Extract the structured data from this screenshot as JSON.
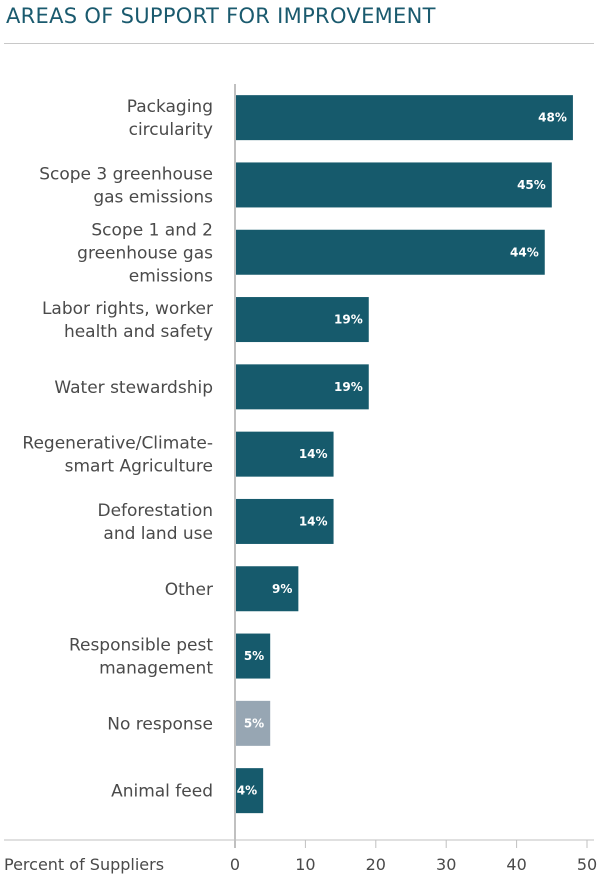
{
  "title": "AREAS OF SUPPORT FOR IMPROVEMENT",
  "colors": {
    "bar": "#165a6c",
    "bar_muted": "#97a6b3",
    "axis": "#c0c0c0",
    "title": "#1a5a6e"
  },
  "chart_data": {
    "type": "bar",
    "orientation": "horizontal",
    "title": "AREAS OF SUPPORT FOR IMPROVEMENT",
    "xlabel": "Percent of Suppliers",
    "ylabel": "",
    "xlim": [
      0,
      50
    ],
    "xticks": [
      0,
      10,
      20,
      30,
      40,
      50
    ],
    "grid": false,
    "categories": [
      [
        "Packaging",
        "circularity"
      ],
      [
        "Scope 3 greenhouse",
        "gas emissions"
      ],
      [
        "Scope 1 and 2",
        "greenhouse gas",
        "emissions"
      ],
      [
        "Labor rights, worker",
        "health and safety"
      ],
      [
        "Water stewardship"
      ],
      [
        "Regenerative/Climate-",
        "smart Agriculture"
      ],
      [
        "Deforestation",
        "and land use"
      ],
      [
        "Other"
      ],
      [
        "Responsible pest",
        "management"
      ],
      [
        "No response"
      ],
      [
        "Animal feed"
      ]
    ],
    "values": [
      48,
      45,
      44,
      19,
      19,
      14,
      14,
      9,
      5,
      5,
      4
    ],
    "value_labels": [
      "48%",
      "45%",
      "44%",
      "19%",
      "19%",
      "14%",
      "14%",
      "9%",
      "5%",
      "5%",
      "4%"
    ],
    "highlight": [
      false,
      false,
      false,
      false,
      false,
      false,
      false,
      false,
      false,
      true,
      false
    ]
  }
}
